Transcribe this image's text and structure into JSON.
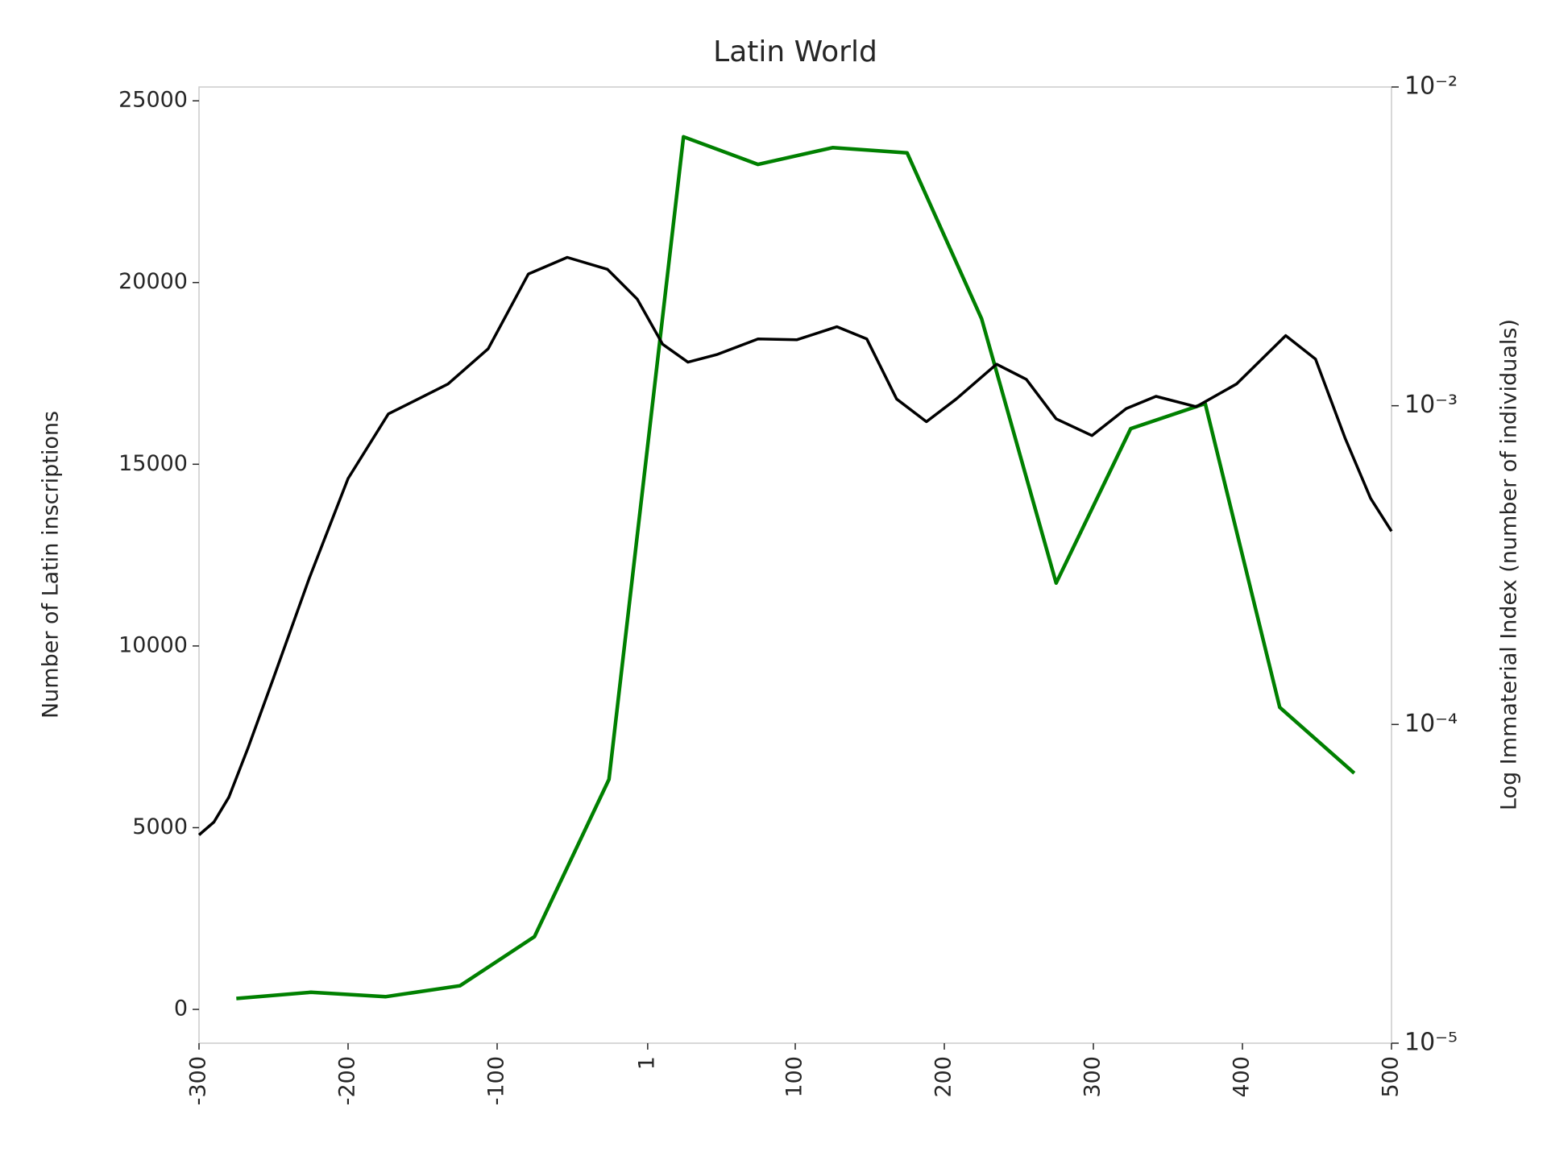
{
  "chart_data": {
    "type": "line",
    "title": "Latin World",
    "ylabel": "Number of Latin inscriptions",
    "y2label": "Log Immaterial Index (number of individuals)",
    "xlim": [
      -300,
      500
    ],
    "xticks": [
      -300,
      -200,
      -100,
      1,
      100,
      200,
      300,
      400,
      500
    ],
    "ylim": [
      -930,
      25380
    ],
    "yticks": [
      0,
      5000,
      10000,
      15000,
      20000,
      25000
    ],
    "y2lim": [
      1e-05,
      0.01
    ],
    "y2scale": "log",
    "y2ticks": [
      {
        "value": 1e-05,
        "label": "10⁻⁵"
      },
      {
        "value": 0.0001,
        "label": "10⁻⁴"
      },
      {
        "value": 0.001,
        "label": "10⁻³"
      },
      {
        "value": 0.01,
        "label": "10⁻²"
      }
    ],
    "grid": false,
    "series": [
      {
        "color": "#008000",
        "x": [
          -275,
          -225,
          -175,
          -125,
          -75,
          -25,
          25,
          75,
          125,
          175,
          225,
          275,
          325,
          375,
          425,
          475
        ],
        "values": [
          300,
          470,
          350,
          650,
          2000,
          6330,
          24010,
          23250,
          23710,
          23570,
          19000,
          11730,
          15980,
          16670,
          8310,
          6500
        ]
      },
      {
        "color": "#000000",
        "axis": "y2",
        "x": [
          -300,
          -290,
          -280,
          -267,
          -250,
          -226,
          -200,
          -173,
          -153,
          -133,
          -106,
          -79,
          -53,
          -26,
          -6,
          11,
          28,
          48,
          75,
          101,
          128,
          148,
          168,
          188,
          208,
          235,
          255,
          275,
          299,
          322,
          342,
          369,
          396,
          429,
          449,
          469,
          486,
          500
        ],
        "values": [
          4.5e-05,
          4.94e-05,
          5.91e-05,
          8.48e-05,
          0.00014,
          0.000288,
          0.000591,
          0.000943,
          0.00105,
          0.00117,
          0.00151,
          0.00259,
          0.00292,
          0.00268,
          0.00216,
          0.00156,
          0.00137,
          0.00145,
          0.00162,
          0.00161,
          0.00177,
          0.00162,
          0.00105,
          0.000891,
          0.00105,
          0.00135,
          0.00121,
          0.00091,
          0.000806,
          0.000979,
          0.00107,
          0.000993,
          0.00117,
          0.00166,
          0.0014,
          0.000788,
          0.000512,
          0.000404
        ]
      }
    ]
  }
}
